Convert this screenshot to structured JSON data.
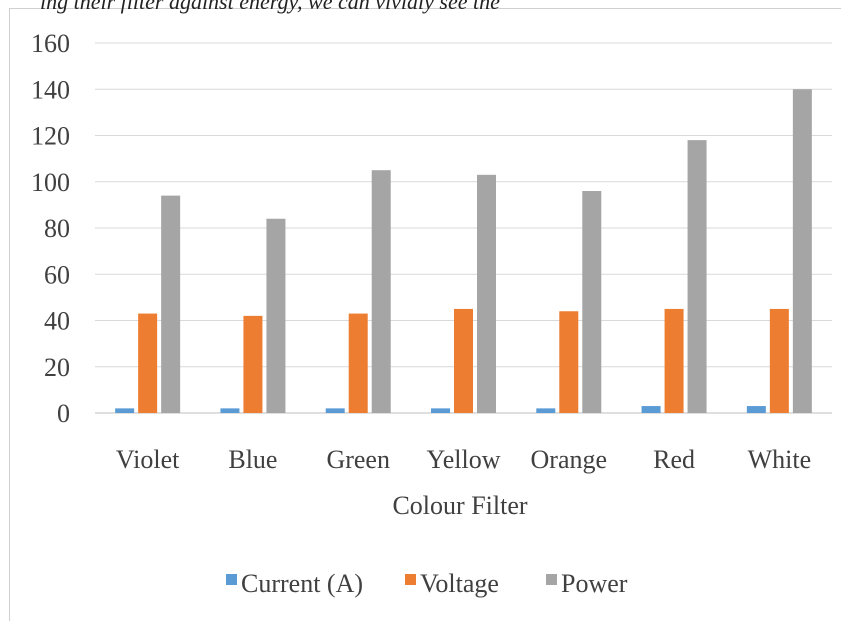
{
  "caption": "ing their filter against energy, we can vividly see the",
  "chart_data": {
    "type": "bar",
    "title": "",
    "xlabel": "Colour Filter",
    "ylabel": "",
    "categories": [
      "Violet",
      "Blue",
      "Green",
      "Yellow",
      "Orange",
      "Red",
      "White"
    ],
    "ylim": [
      0,
      160
    ],
    "yticks": [
      0,
      20,
      40,
      60,
      80,
      100,
      120,
      140,
      160
    ],
    "grid": true,
    "legend_position": "bottom",
    "series": [
      {
        "name": "Current (A)",
        "color": "#5B9BD5",
        "values": [
          2,
          2,
          2,
          2,
          2,
          3,
          3
        ]
      },
      {
        "name": "Voltage",
        "color": "#ED7D31",
        "values": [
          43,
          42,
          43,
          45,
          44,
          45,
          45
        ]
      },
      {
        "name": "Power",
        "color": "#A5A5A5",
        "values": [
          94,
          84,
          105,
          103,
          96,
          118,
          140
        ]
      }
    ]
  }
}
